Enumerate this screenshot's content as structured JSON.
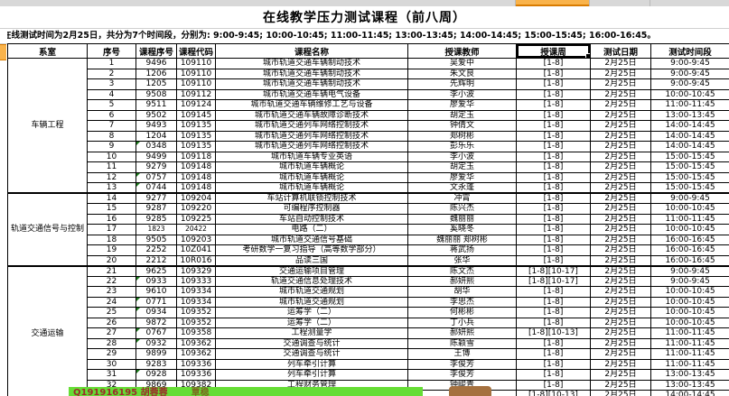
{
  "sheet": {
    "title": "在线教学压力测试课程（前八周）",
    "note": "在线测试时间为2月25日，共分为7个时间段，分别为: 9:00-9:45; 10:00-10:45; 11:00-11:45; 13:00-13:45; 14:00-14:45; 15:00-15:45; 16:00-16:45。"
  },
  "colors": {
    "selection_accent": "#f9b34b",
    "selection_border": "#d97b00",
    "error_flag_green": "#1c7a1c",
    "watermark_green": "#66dd35",
    "grid_line": "#000000"
  },
  "table": {
    "headers": [
      "系室",
      "序号",
      "课程序号",
      "课程代码",
      "课程名称",
      "授课教师",
      "授课周",
      "测试日期",
      "测试时间段"
    ],
    "selected_header_index": 6,
    "groups": [
      {
        "label": "车辆工程",
        "start": 0,
        "count": 13
      },
      {
        "label": "轨道交通信号与控制",
        "start": 13,
        "count": 7
      },
      {
        "label": "交通运输",
        "start": 20,
        "count": 13
      }
    ],
    "rows": [
      {
        "no": "1",
        "sn": "9496",
        "code": "109110",
        "course": "城市轨道交通车辆制动技术",
        "teacher": "吴爱中",
        "weeks": "[1-8]",
        "date": "2月25日",
        "time": "9:00-9:45",
        "flag": false,
        "small": false
      },
      {
        "no": "2",
        "sn": "1206",
        "code": "109110",
        "course": "城市轨道交通车辆制动技术",
        "teacher": "朱文良",
        "weeks": "[1-8]",
        "date": "2月25日",
        "time": "9:00-9:45",
        "flag": false,
        "small": false
      },
      {
        "no": "3",
        "sn": "1205",
        "code": "109110",
        "course": "城市轨道交通车辆制动技术",
        "teacher": "先辉明",
        "weeks": "[1-8]",
        "date": "2月25日",
        "time": "9:00-9:45",
        "flag": false,
        "small": false
      },
      {
        "no": "4",
        "sn": "9508",
        "code": "109112",
        "course": "城市轨道交通车辆电气设备",
        "teacher": "李小波",
        "weeks": "[1-8]",
        "date": "2月25日",
        "time": "10:00-10:45",
        "flag": false,
        "small": false
      },
      {
        "no": "5",
        "sn": "9511",
        "code": "109124",
        "course": "城市轨道交通车辆维修工艺与设备",
        "teacher": "廖爱华",
        "weeks": "[1-8]",
        "date": "2月25日",
        "time": "11:00-11:45",
        "flag": false,
        "small": false
      },
      {
        "no": "6",
        "sn": "9502",
        "code": "109145",
        "course": "城市轨道交通车辆故障诊断技术",
        "teacher": "胡定玉",
        "weeks": "[1-8]",
        "date": "2月25日",
        "time": "13:00-13:45",
        "flag": false,
        "small": false
      },
      {
        "no": "7",
        "sn": "9493",
        "code": "109135",
        "course": "城市轨道交通列车网络控制技术",
        "teacher": "钟倩文",
        "weeks": "[1-8]",
        "date": "2月25日",
        "time": "14:00-14:45",
        "flag": false,
        "small": false
      },
      {
        "no": "8",
        "sn": "1204",
        "code": "109135",
        "course": "城市轨道交通列车网络控制技术",
        "teacher": "郑树彬",
        "weeks": "[1-8]",
        "date": "2月25日",
        "time": "14:00-14:45",
        "flag": false,
        "small": false
      },
      {
        "no": "9",
        "sn": "0348",
        "code": "109135",
        "course": "城市轨道交通列车网络控制技术",
        "teacher": "彭乐乐",
        "weeks": "[1-8]",
        "date": "2月25日",
        "time": "14:00-14:45",
        "flag": true,
        "small": false
      },
      {
        "no": "10",
        "sn": "9499",
        "code": "109118",
        "course": "城市轨道车辆专业英语",
        "teacher": "李小波",
        "weeks": "[1-8]",
        "date": "2月25日",
        "time": "15:00-15:45",
        "flag": false,
        "small": false
      },
      {
        "no": "11",
        "sn": "9279",
        "code": "109148",
        "course": "城市轨道车辆概论",
        "teacher": "胡定玉",
        "weeks": "[1-8]",
        "date": "2月25日",
        "time": "15:00-15:45",
        "flag": false,
        "small": false
      },
      {
        "no": "12",
        "sn": "0757",
        "code": "109148",
        "course": "城市轨道车辆概论",
        "teacher": "廖爱华",
        "weeks": "[1-8]",
        "date": "2月25日",
        "time": "15:00-15:45",
        "flag": true,
        "small": false
      },
      {
        "no": "13",
        "sn": "0744",
        "code": "109148",
        "course": "城市轨道车辆概论",
        "teacher": "文永蓬",
        "weeks": "[1-8]",
        "date": "2月25日",
        "time": "15:00-15:45",
        "flag": true,
        "small": false
      },
      {
        "no": "14",
        "sn": "9277",
        "code": "109204",
        "course": "车站计算机联锁控制技术",
        "teacher": "冲霄",
        "weeks": "[1-8]",
        "date": "2月25日",
        "time": "9:00-9:45",
        "flag": false,
        "small": false
      },
      {
        "no": "15",
        "sn": "9287",
        "code": "109220",
        "course": "可编程序控制器",
        "teacher": "陈兴杰",
        "weeks": "[1-8]",
        "date": "2月25日",
        "time": "10:00-10:45",
        "flag": false,
        "small": false
      },
      {
        "no": "16",
        "sn": "9285",
        "code": "109225",
        "course": "车站自动控制技术",
        "teacher": "魏丽丽",
        "weeks": "[1-8]",
        "date": "2月25日",
        "time": "11:00-11:45",
        "flag": false,
        "small": false
      },
      {
        "no": "17",
        "sn": "1823",
        "code": "20422",
        "course": "电路（二）",
        "teacher": "奚晓冬",
        "weeks": "[1-8]",
        "date": "2月25日",
        "time": "10:00-10:45",
        "flag": false,
        "small": true
      },
      {
        "no": "18",
        "sn": "9505",
        "code": "109203",
        "course": "城市轨道交通信号基础",
        "teacher": "魏丽丽 郑树彬",
        "weeks": "[1-8]",
        "date": "2月25日",
        "time": "16:00-16:45",
        "flag": false,
        "small": false
      },
      {
        "no": "19",
        "sn": "2252",
        "code": "10Z041",
        "course": "考研数学一复习指导（高等数学部分）",
        "teacher": "蒋武扬",
        "weeks": "[1-8]",
        "date": "2月25日",
        "time": "16:00-16:45",
        "flag": false,
        "small": false
      },
      {
        "no": "20",
        "sn": "2212",
        "code": "10R016",
        "course": "品读三国",
        "teacher": "张华",
        "weeks": "[1-8]",
        "date": "2月25日",
        "time": "16:00-16:45",
        "flag": false,
        "small": false
      },
      {
        "no": "21",
        "sn": "9625",
        "code": "109329",
        "course": "交通运输项目管理",
        "teacher": "陈文杰",
        "weeks": "[1-8][10-17]",
        "date": "2月25日",
        "time": "9:00-9:45",
        "flag": false,
        "small": false
      },
      {
        "no": "22",
        "sn": "0933",
        "code": "109333",
        "course": "轨道交通信息处理技术",
        "teacher": "郝妍熙",
        "weeks": "[1-8][10-17]",
        "date": "2月25日",
        "time": "9:00-9:45",
        "flag": true,
        "small": false
      },
      {
        "no": "23",
        "sn": "9610",
        "code": "109334",
        "course": "城市轨道交通规划",
        "teacher": "胡华",
        "weeks": "[1-8]",
        "date": "2月25日",
        "time": "10:00-10:45",
        "flag": false,
        "small": false
      },
      {
        "no": "24",
        "sn": "0771",
        "code": "109334",
        "course": "城市轨道交通规划",
        "teacher": "李思杰",
        "weeks": "[1-8]",
        "date": "2月25日",
        "time": "10:00-10:45",
        "flag": true,
        "small": false
      },
      {
        "no": "25",
        "sn": "0934",
        "code": "109352",
        "course": "运筹学（二）",
        "teacher": "何彬彬",
        "weeks": "[1-8]",
        "date": "2月25日",
        "time": "10:00-10:45",
        "flag": true,
        "small": false
      },
      {
        "no": "26",
        "sn": "9872",
        "code": "109352",
        "course": "运筹学（二）",
        "teacher": "丁小兵",
        "weeks": "[1-8]",
        "date": "2月25日",
        "time": "10:00-10:45",
        "flag": false,
        "small": false
      },
      {
        "no": "27",
        "sn": "0767",
        "code": "109358",
        "course": "工程测量学",
        "teacher": "郝妍熙",
        "weeks": "[1-8][10-13]",
        "date": "2月25日",
        "time": "11:00-11:45",
        "flag": true,
        "small": false
      },
      {
        "no": "28",
        "sn": "0932",
        "code": "109362",
        "course": "交通调查与统计",
        "teacher": "陈颖雪",
        "weeks": "[1-8]",
        "date": "2月25日",
        "time": "11:00-11:45",
        "flag": true,
        "small": false
      },
      {
        "no": "29",
        "sn": "9899",
        "code": "109362",
        "course": "交通调查与统计",
        "teacher": "王博",
        "weeks": "[1-8]",
        "date": "2月25日",
        "time": "11:00-11:45",
        "flag": false,
        "small": false
      },
      {
        "no": "30",
        "sn": "9283",
        "code": "109336",
        "course": "列车牵引计算",
        "teacher": "李俊芳",
        "weeks": "[1-8]",
        "date": "2月25日",
        "time": "11:00-11:45",
        "flag": false,
        "small": false
      },
      {
        "no": "31",
        "sn": "0928",
        "code": "109336",
        "course": "列车牵引计算",
        "teacher": "李俊芳",
        "weeks": "[1-8]",
        "date": "2月25日",
        "time": "13:00-13:45",
        "flag": true,
        "small": false
      },
      {
        "no": "32",
        "sn": "9869",
        "code": "109382",
        "course": "工程财务管理",
        "teacher": "钟峻青",
        "weeks": "[1-8]",
        "date": "2月25日",
        "time": "13:00-13:45",
        "flag": false,
        "small": false
      },
      {
        "no": "33",
        "sn": "0779",
        "code": "109350",
        "course": "工程测量学",
        "teacher": "胡蓉蓉",
        "weeks": "[1-8][10-13]",
        "date": "2月25日",
        "time": "14:00-14:45",
        "flag": true,
        "small": false
      }
    ]
  },
  "watermark": {
    "text": "Q191916195 胡蓉蓉",
    "text2": "覃稳"
  }
}
